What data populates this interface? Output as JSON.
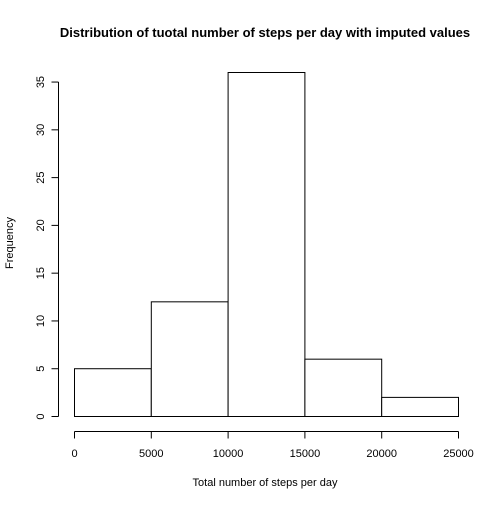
{
  "chart_data": {
    "type": "bar",
    "title": "Distribution of tuotal number of steps per day with imputed values",
    "xlabel": "Total number of steps per day",
    "ylabel": "Frequency",
    "bins": [
      {
        "from": 0,
        "to": 5000,
        "value": 5
      },
      {
        "from": 5000,
        "to": 10000,
        "value": 12
      },
      {
        "from": 10000,
        "to": 15000,
        "value": 36
      },
      {
        "from": 15000,
        "to": 20000,
        "value": 6
      },
      {
        "from": 20000,
        "to": 25000,
        "value": 2
      }
    ],
    "xlim": [
      0,
      25000
    ],
    "ylim": [
      0,
      36
    ],
    "x_ticks": [
      0,
      5000,
      10000,
      15000,
      20000,
      25000
    ],
    "x_tick_labels": [
      "0",
      "5000",
      "10000",
      "15000",
      "20000",
      "25000"
    ],
    "y_ticks": [
      0,
      5,
      10,
      15,
      20,
      25,
      30,
      35
    ],
    "y_tick_labels": [
      "0",
      "5",
      "10",
      "15",
      "20",
      "25",
      "30",
      "35"
    ],
    "grid": false
  }
}
